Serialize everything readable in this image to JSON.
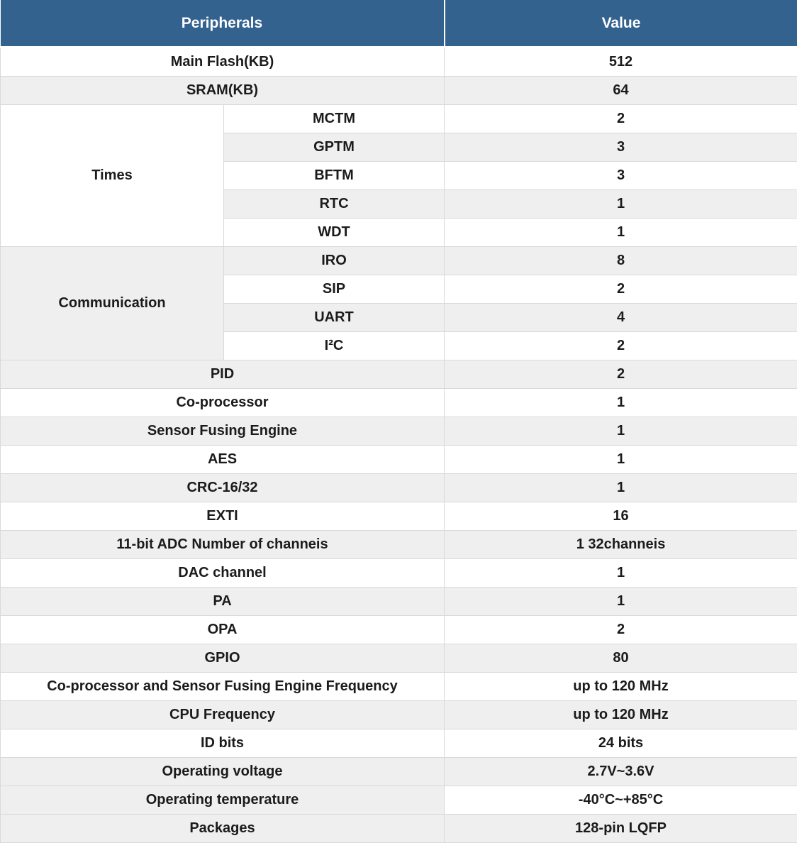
{
  "colors": {
    "header_bg": "#34628F",
    "header_text": "#FFFFFF",
    "row_white": "#FFFFFF",
    "row_gray": "#EFEFEF",
    "border": "#D9D9D9",
    "text": "#1B1B1B"
  },
  "table": {
    "header": {
      "peripherals": "Peripherals",
      "value": "Value"
    },
    "rows": [
      {
        "label": "Main Flash(KB)",
        "value": "512",
        "label_shade": "white",
        "value_shade": "white"
      },
      {
        "label": "SRAM(KB)",
        "value": "64",
        "label_shade": "gray",
        "value_shade": "gray"
      },
      {
        "group": "Times",
        "group_span": 5,
        "group_shade": "white",
        "label": "MCTM",
        "value": "2",
        "label_shade": "white",
        "value_shade": "white"
      },
      {
        "in_group": true,
        "label": "GPTM",
        "value": "3",
        "label_shade": "gray",
        "value_shade": "gray"
      },
      {
        "in_group": true,
        "label": "BFTM",
        "value": "3",
        "label_shade": "white",
        "value_shade": "white"
      },
      {
        "in_group": true,
        "label": "RTC",
        "value": "1",
        "label_shade": "gray",
        "value_shade": "gray"
      },
      {
        "in_group": true,
        "label": "WDT",
        "value": "1",
        "label_shade": "white",
        "value_shade": "white"
      },
      {
        "group": "Communication",
        "group_span": 4,
        "group_shade": "gray",
        "label": "IRO",
        "value": "8",
        "label_shade": "gray",
        "value_shade": "gray"
      },
      {
        "in_group": true,
        "label": "SIP",
        "value": "2",
        "label_shade": "white",
        "value_shade": "white"
      },
      {
        "in_group": true,
        "label": "UART",
        "value": "4",
        "label_shade": "gray",
        "value_shade": "gray"
      },
      {
        "in_group": true,
        "label": "I²C",
        "value": "2",
        "label_shade": "white",
        "value_shade": "white"
      },
      {
        "label": "PID",
        "value": "2",
        "label_shade": "gray",
        "value_shade": "gray"
      },
      {
        "label": "Co-processor",
        "value": "1",
        "label_shade": "white",
        "value_shade": "white"
      },
      {
        "label": "Sensor Fusing Engine",
        "value": "1",
        "label_shade": "gray",
        "value_shade": "gray"
      },
      {
        "label": "AES",
        "value": "1",
        "label_shade": "white",
        "value_shade": "white"
      },
      {
        "label": "CRC-16/32",
        "value": "1",
        "label_shade": "gray",
        "value_shade": "gray"
      },
      {
        "label": "EXTI",
        "value": "16",
        "label_shade": "white",
        "value_shade": "white"
      },
      {
        "label": "11-bit ADC Number of channeis",
        "value": "1 32channeis",
        "label_shade": "gray",
        "value_shade": "gray"
      },
      {
        "label": "DAC channel",
        "value": "1",
        "label_shade": "white",
        "value_shade": "white"
      },
      {
        "label": "PA",
        "value": "1",
        "label_shade": "gray",
        "value_shade": "gray"
      },
      {
        "label": "OPA",
        "value": "2",
        "label_shade": "white",
        "value_shade": "white"
      },
      {
        "label": "GPIO",
        "value": "80",
        "label_shade": "gray",
        "value_shade": "gray"
      },
      {
        "label": "Co-processor and Sensor Fusing Engine Frequency",
        "value": "up to 120 MHz",
        "label_shade": "white",
        "value_shade": "white"
      },
      {
        "label": "CPU Frequency",
        "value": "up to 120 MHz",
        "label_shade": "gray",
        "value_shade": "gray"
      },
      {
        "label": "ID bits",
        "value": "24 bits",
        "label_shade": "white",
        "value_shade": "white"
      },
      {
        "label": "Operating voltage",
        "value": "2.7V~3.6V",
        "label_shade": "gray",
        "value_shade": "gray"
      },
      {
        "label": "Operating temperature",
        "value": "-40°C~+85°C",
        "label_shade": "gray",
        "value_shade": "white"
      },
      {
        "label": "Packages",
        "value": "128-pin LQFP",
        "label_shade": "gray",
        "value_shade": "gray"
      }
    ]
  }
}
